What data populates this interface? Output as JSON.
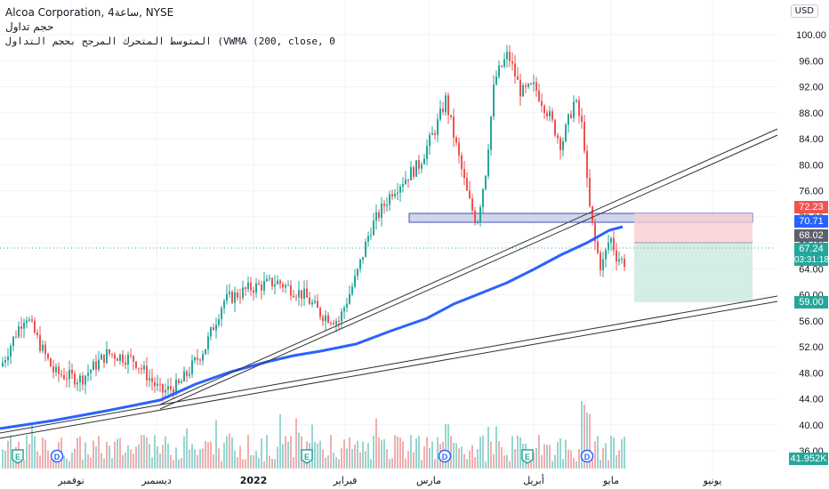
{
  "legend": {
    "symbol_line": "Alcoa Corporation, 4ساعة, NYSE",
    "volume_label": "حجم تداول",
    "vwma_label": "المتوسط المتحرك المرجح بحجم التداول (VWMA (200, close, 0"
  },
  "currency_button": "USD",
  "y_axis": {
    "ticks": [
      "100.00",
      "96.00",
      "92.00",
      "88.00",
      "84.00",
      "80.00",
      "76.00",
      "72.00",
      "68.00",
      "64.00",
      "60.00",
      "56.00",
      "52.00",
      "48.00",
      "44.00",
      "40.00",
      "36.00"
    ]
  },
  "x_axis": {
    "labels": [
      "نوفمبر",
      "ديسمبر",
      "2022",
      "فبراير",
      "مارس",
      "أبريل",
      "مايو",
      "يونيو"
    ]
  },
  "price_badges": {
    "stop_loss": "72.23",
    "vwma": "70.71",
    "entry": "68.02",
    "last": "67.24",
    "countdown": "03:31:18",
    "target": "59.00",
    "volume": "41.952K"
  },
  "event_markers": [
    {
      "type": "E"
    },
    {
      "type": "D"
    },
    {
      "type": "E"
    },
    {
      "type": "D"
    },
    {
      "type": "E"
    },
    {
      "type": "D"
    }
  ],
  "colors": {
    "up": "#26a69a",
    "down": "#ef5350",
    "vwma": "#2962ff",
    "stop_zone": "#f7cdd2",
    "target_zone": "#cdebe2",
    "resistance_zone": "#c5cae9"
  }
}
